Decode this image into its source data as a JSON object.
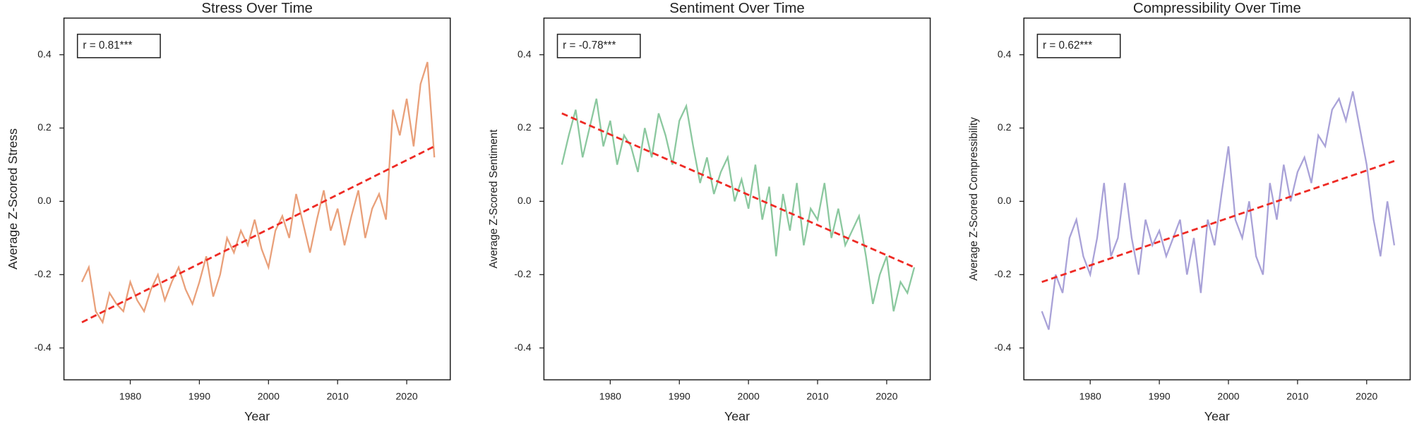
{
  "chart_data": [
    {
      "type": "line",
      "title": "Stress Over Time",
      "xlabel": "Year",
      "ylabel": "Average Z-Scored Stress",
      "annotation": "r = 0.81***",
      "x": [
        1973,
        1974,
        1975,
        1976,
        1977,
        1978,
        1979,
        1980,
        1981,
        1982,
        1983,
        1984,
        1985,
        1986,
        1987,
        1988,
        1989,
        1990,
        1991,
        1992,
        1993,
        1994,
        1995,
        1996,
        1997,
        1998,
        1999,
        2000,
        2001,
        2002,
        2003,
        2004,
        2005,
        2006,
        2007,
        2008,
        2009,
        2010,
        2011,
        2012,
        2013,
        2014,
        2015,
        2016,
        2017,
        2018,
        2019,
        2020,
        2021,
        2022,
        2023,
        2024
      ],
      "values": [
        -0.22,
        -0.18,
        -0.3,
        -0.33,
        -0.25,
        -0.28,
        -0.3,
        -0.22,
        -0.27,
        -0.3,
        -0.24,
        -0.2,
        -0.27,
        -0.22,
        -0.18,
        -0.24,
        -0.28,
        -0.22,
        -0.15,
        -0.26,
        -0.2,
        -0.1,
        -0.14,
        -0.08,
        -0.12,
        -0.05,
        -0.13,
        -0.18,
        -0.08,
        -0.04,
        -0.1,
        0.02,
        -0.06,
        -0.14,
        -0.05,
        0.03,
        -0.08,
        -0.02,
        -0.12,
        -0.04,
        0.03,
        -0.1,
        -0.02,
        0.02,
        -0.05,
        0.25,
        0.18,
        0.28,
        0.15,
        0.32,
        0.38,
        0.12
      ],
      "color": "#e9a07a",
      "trend": {
        "x": [
          1973,
          2024
        ],
        "values": [
          -0.33,
          0.15
        ],
        "color": "#ee2a24"
      },
      "xlim": [
        1970.4,
        2026.3
      ],
      "ylim": [
        -0.487,
        0.5
      ],
      "xticks": [
        1980,
        1990,
        2000,
        2010,
        2020
      ],
      "yticks": [
        -0.4,
        -0.2,
        {
          "value": 0,
          "label": "0.0"
        },
        0.2,
        0.4
      ]
    },
    {
      "type": "line",
      "title": "Sentiment Over Time",
      "xlabel": "Year",
      "ylabel": "Average Z-Scored Sentiment",
      "annotation": "r = -0.78***",
      "x": [
        1973,
        1974,
        1975,
        1976,
        1977,
        1978,
        1979,
        1980,
        1981,
        1982,
        1983,
        1984,
        1985,
        1986,
        1987,
        1988,
        1989,
        1990,
        1991,
        1992,
        1993,
        1994,
        1995,
        1996,
        1997,
        1998,
        1999,
        2000,
        2001,
        2002,
        2003,
        2004,
        2005,
        2006,
        2007,
        2008,
        2009,
        2010,
        2011,
        2012,
        2013,
        2014,
        2015,
        2016,
        2017,
        2018,
        2019,
        2020,
        2021,
        2022,
        2023,
        2024
      ],
      "values": [
        0.1,
        0.18,
        0.25,
        0.12,
        0.2,
        0.28,
        0.15,
        0.22,
        0.1,
        0.18,
        0.15,
        0.08,
        0.2,
        0.12,
        0.24,
        0.18,
        0.1,
        0.22,
        0.26,
        0.15,
        0.05,
        0.12,
        0.02,
        0.08,
        0.12,
        0.0,
        0.06,
        -0.02,
        0.1,
        -0.05,
        0.04,
        -0.15,
        0.02,
        -0.08,
        0.05,
        -0.12,
        -0.02,
        -0.05,
        0.05,
        -0.1,
        -0.02,
        -0.12,
        -0.08,
        -0.04,
        -0.15,
        -0.28,
        -0.2,
        -0.15,
        -0.3,
        -0.22,
        -0.25,
        -0.18
      ],
      "color": "#8bc89f",
      "trend": {
        "x": [
          1973,
          2024
        ],
        "values": [
          0.24,
          -0.18
        ],
        "color": "#ee2a24"
      },
      "xlim": [
        1970.4,
        2026.3
      ],
      "ylim": [
        -0.487,
        0.5
      ],
      "xticks": [
        1980,
        1990,
        2000,
        2010,
        2020
      ],
      "yticks": [
        -0.4,
        -0.2,
        {
          "value": 0,
          "label": "0.0"
        },
        0.2,
        0.4
      ]
    },
    {
      "type": "line",
      "title": "Compressibility Over Time",
      "xlabel": "Year",
      "ylabel": "Average Z-Scored Compressibility",
      "annotation": "r = 0.62***",
      "x": [
        1973,
        1974,
        1975,
        1976,
        1977,
        1978,
        1979,
        1980,
        1981,
        1982,
        1983,
        1984,
        1985,
        1986,
        1987,
        1988,
        1989,
        1990,
        1991,
        1992,
        1993,
        1994,
        1995,
        1996,
        1997,
        1998,
        1999,
        2000,
        2001,
        2002,
        2003,
        2004,
        2005,
        2006,
        2007,
        2008,
        2009,
        2010,
        2011,
        2012,
        2013,
        2014,
        2015,
        2016,
        2017,
        2018,
        2019,
        2020,
        2021,
        2022,
        2023,
        2024
      ],
      "values": [
        -0.3,
        -0.35,
        -0.2,
        -0.25,
        -0.1,
        -0.05,
        -0.15,
        -0.2,
        -0.1,
        0.05,
        -0.15,
        -0.1,
        0.05,
        -0.1,
        -0.2,
        -0.05,
        -0.12,
        -0.08,
        -0.15,
        -0.1,
        -0.05,
        -0.2,
        -0.1,
        -0.25,
        -0.05,
        -0.12,
        0.02,
        0.15,
        -0.05,
        -0.1,
        0.0,
        -0.15,
        -0.2,
        0.05,
        -0.05,
        0.1,
        0.0,
        0.08,
        0.12,
        0.05,
        0.18,
        0.15,
        0.25,
        0.28,
        0.22,
        0.3,
        0.2,
        0.1,
        -0.05,
        -0.15,
        0.0,
        -0.12
      ],
      "color": "#a9a2d8",
      "trend": {
        "x": [
          1973,
          2024
        ],
        "values": [
          -0.22,
          0.11
        ],
        "color": "#ee2a24"
      },
      "xlim": [
        1970.4,
        2026.3
      ],
      "ylim": [
        -0.487,
        0.5
      ],
      "xticks": [
        1980,
        1990,
        2000,
        2010,
        2020
      ],
      "yticks": [
        -0.4,
        -0.2,
        {
          "value": 0,
          "label": "0.0"
        },
        0.2,
        0.4
      ]
    }
  ]
}
